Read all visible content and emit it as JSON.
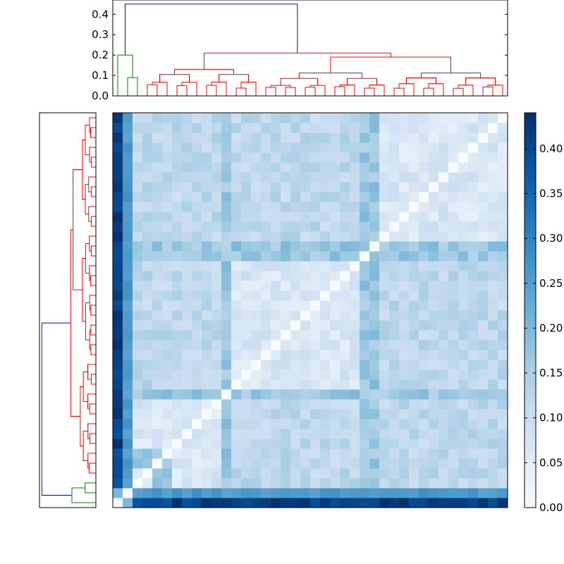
{
  "chart_data": {
    "type": "heatmap",
    "title": "",
    "n": 40,
    "colormap": "Blues",
    "colormap_stops": [
      "#f7fbff",
      "#deebf7",
      "#c6dbef",
      "#9ecae1",
      "#6baed6",
      "#4292c6",
      "#2171b5",
      "#08519c",
      "#08306b"
    ],
    "value_range": [
      0.0,
      0.44
    ],
    "colorbar": {
      "ticks": [
        0.0,
        0.05,
        0.1,
        0.15,
        0.2,
        0.25,
        0.3,
        0.35,
        0.4
      ],
      "tick_labels": [
        "0.00",
        "0.05",
        "0.10",
        "0.15",
        "0.20",
        "0.25",
        "0.30",
        "0.35",
        "0.40"
      ]
    },
    "dendrogram_top": {
      "ylim": [
        0.0,
        0.47
      ],
      "ticks": [
        0.0,
        0.1,
        0.2,
        0.3,
        0.4
      ],
      "tick_labels": [
        "0.0",
        "0.1",
        "0.2",
        "0.3",
        "0.4"
      ],
      "root_height": 0.45,
      "root_color": "#0000ff",
      "cluster_colors": [
        "#008000",
        "#ff0000"
      ]
    },
    "dendrogram_left": {
      "root_height": 0.45,
      "root_color": "#0000ff",
      "cluster_colors": [
        "#008000",
        "#ff0000"
      ]
    }
  }
}
